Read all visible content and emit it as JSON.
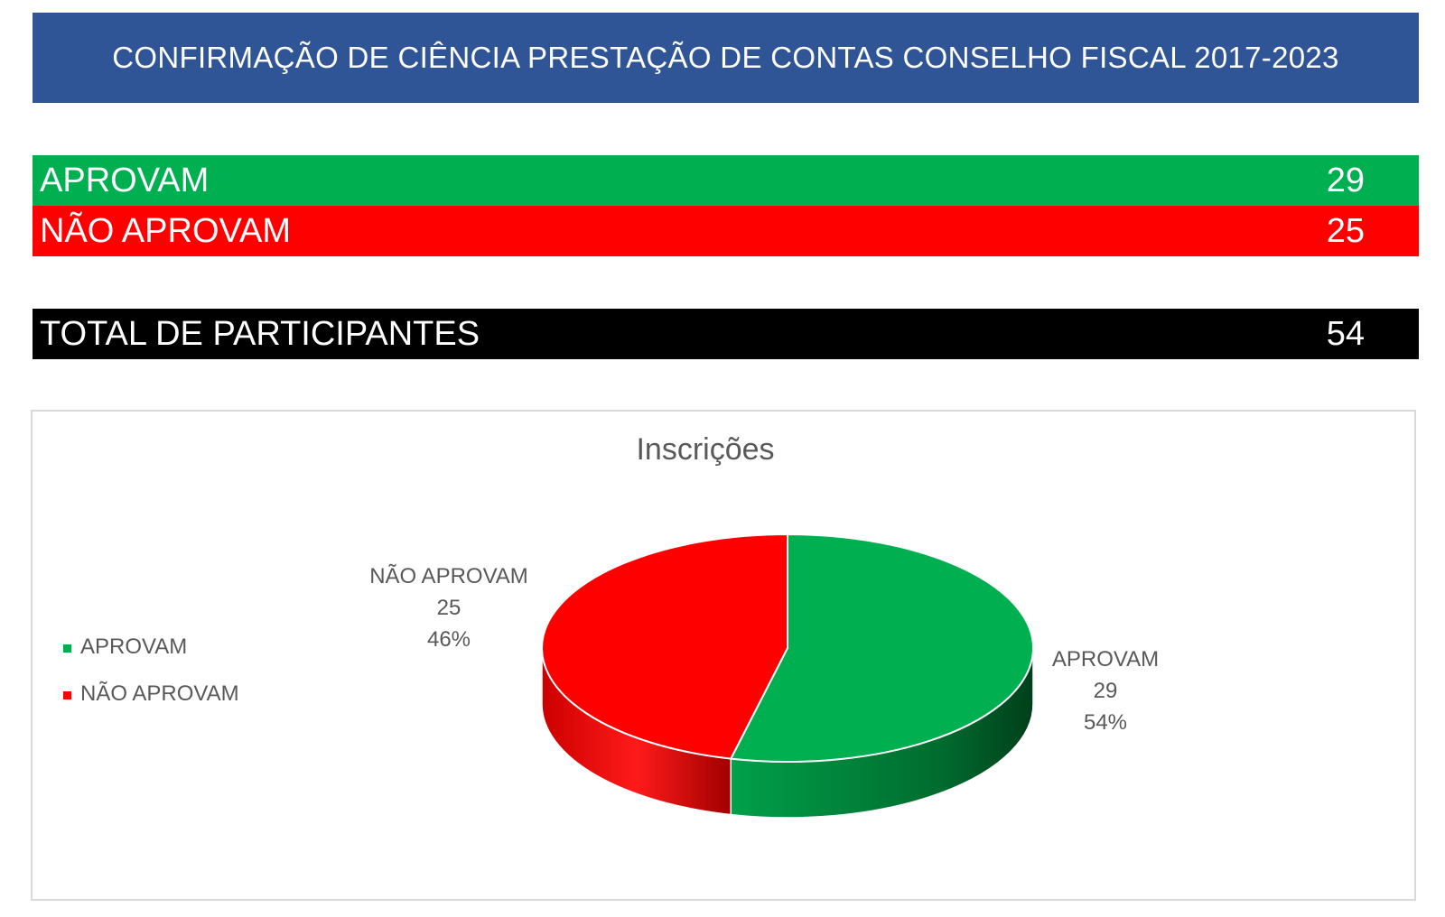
{
  "banner": {
    "title": "CONFIRMAÇÃO DE CIÊNCIA PRESTAÇÃO DE CONTAS CONSELHO FISCAL 2017-2023"
  },
  "summary": {
    "approve": {
      "label": "APROVAM",
      "value": "29",
      "color": "#00b050"
    },
    "reject": {
      "label": "NÃO APROVAM",
      "value": "25",
      "color": "#ff0000"
    },
    "total": {
      "label": "TOTAL DE PARTICIPANTES",
      "value": "54",
      "color": "#000000"
    }
  },
  "chart_data": {
    "type": "pie",
    "title": "Inscrições",
    "legend_position": "left",
    "three_d": true,
    "slices": [
      {
        "label": "APROVAM",
        "value": 29,
        "percent": "54%",
        "color": "#00b050"
      },
      {
        "label": "NÃO APROVAM",
        "value": 25,
        "percent": "46%",
        "color": "#ff0000"
      }
    ],
    "legend": [
      "APROVAM",
      "NÃO APROVAM"
    ]
  }
}
